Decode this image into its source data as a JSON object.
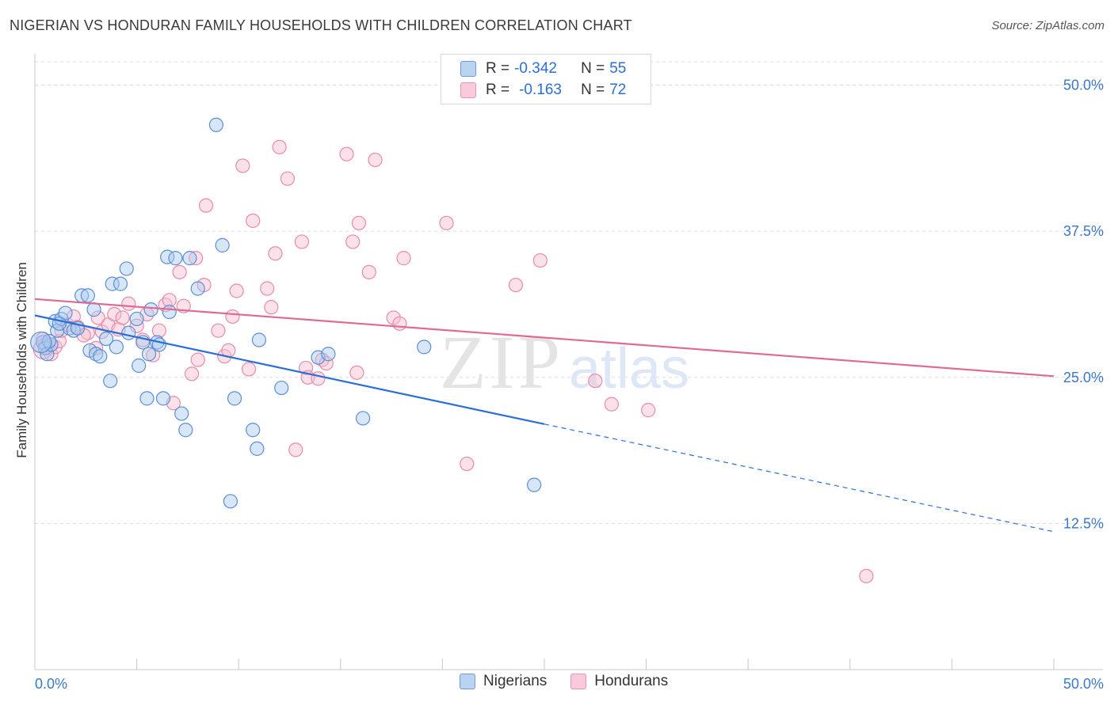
{
  "header": {
    "title": "NIGERIAN VS HONDURAN FAMILY HOUSEHOLDS WITH CHILDREN CORRELATION CHART",
    "source": "Source: ZipAtlas.com"
  },
  "legend": {
    "series": [
      {
        "r_label": "R =",
        "r_value": "-0.342",
        "n_label": "N =",
        "n_value": "55"
      },
      {
        "r_label": "R =",
        "r_value": "-0.163",
        "n_label": "N =",
        "n_value": "72"
      }
    ]
  },
  "bottom_legend": {
    "nigerians": "Nigerians",
    "hondurans": "Hondurans"
  },
  "watermark": {
    "zip": "ZIP",
    "atlas": "atlas"
  },
  "colors": {
    "nigerian_fill": "#a9c9f0",
    "nigerian_stroke": "#5b8fd4",
    "nigerian_line": "#2a6fd6",
    "honduran_fill": "#f6bfd0",
    "honduran_stroke": "#e98aaa",
    "honduran_line": "#e06a93",
    "tick_text": "#3a78c9",
    "grid": "#dcdcdc"
  },
  "chart_data": {
    "type": "scatter",
    "title": "NIGERIAN VS HONDURAN FAMILY HOUSEHOLDS WITH CHILDREN CORRELATION CHART",
    "xlabel": "",
    "ylabel": "Family Households with Children",
    "xlim": [
      0,
      50
    ],
    "ylim": [
      0,
      52
    ],
    "x_tick_labels": [
      "0.0%",
      "50.0%"
    ],
    "y_ticks": [
      12.5,
      25.0,
      37.5,
      50.0
    ],
    "y_tick_labels": [
      "12.5%",
      "25.0%",
      "37.5%",
      "50.0%"
    ],
    "grid": true,
    "series": [
      {
        "name": "Nigerians",
        "r": -0.342,
        "n": 55,
        "trend": {
          "x0": 0,
          "y0": 30.3,
          "x1": 25,
          "y1": 21.0,
          "dash_x1": 50,
          "dash_y1": 11.8
        },
        "points": [
          [
            0.4,
            28.0
          ],
          [
            0.5,
            27.5
          ],
          [
            0.6,
            27.0
          ],
          [
            0.8,
            27.8
          ],
          [
            1.0,
            29.8
          ],
          [
            1.1,
            29.0
          ],
          [
            1.3,
            30.0
          ],
          [
            1.5,
            30.5
          ],
          [
            1.7,
            29.2
          ],
          [
            1.9,
            29.0
          ],
          [
            2.3,
            32.0
          ],
          [
            2.6,
            32.0
          ],
          [
            2.7,
            27.3
          ],
          [
            2.9,
            30.8
          ],
          [
            3.0,
            27.0
          ],
          [
            3.2,
            26.8
          ],
          [
            3.7,
            24.7
          ],
          [
            3.8,
            33.0
          ],
          [
            4.2,
            33.0
          ],
          [
            4.0,
            27.6
          ],
          [
            4.6,
            28.8
          ],
          [
            4.5,
            34.3
          ],
          [
            5.0,
            30.0
          ],
          [
            5.1,
            26.0
          ],
          [
            5.3,
            28.0
          ],
          [
            5.5,
            23.2
          ],
          [
            5.6,
            27.0
          ],
          [
            5.7,
            30.8
          ],
          [
            6.0,
            28.0
          ],
          [
            6.1,
            27.8
          ],
          [
            6.3,
            23.2
          ],
          [
            6.5,
            35.3
          ],
          [
            6.6,
            30.6
          ],
          [
            6.9,
            35.2
          ],
          [
            7.2,
            21.9
          ],
          [
            7.4,
            20.5
          ],
          [
            7.6,
            35.2
          ],
          [
            8.0,
            32.6
          ],
          [
            8.9,
            46.6
          ],
          [
            9.2,
            36.3
          ],
          [
            9.6,
            14.4
          ],
          [
            9.8,
            23.2
          ],
          [
            10.7,
            20.5
          ],
          [
            10.9,
            18.9
          ],
          [
            11.0,
            28.2
          ],
          [
            12.1,
            24.1
          ],
          [
            13.9,
            26.7
          ],
          [
            14.4,
            27.0
          ],
          [
            16.1,
            21.5
          ],
          [
            19.1,
            27.6
          ],
          [
            24.5,
            15.8
          ],
          [
            0.7,
            28.1
          ],
          [
            1.2,
            29.6
          ],
          [
            3.5,
            28.3
          ],
          [
            2.1,
            29.2
          ]
        ]
      },
      {
        "name": "Hondurans",
        "r": -0.163,
        "n": 72,
        "trend": {
          "x0": 0,
          "y0": 31.7,
          "x1": 50,
          "y1": 25.1
        },
        "points": [
          [
            0.4,
            28.3
          ],
          [
            0.5,
            27.8
          ],
          [
            0.6,
            27.5
          ],
          [
            0.8,
            27.0
          ],
          [
            1.0,
            27.6
          ],
          [
            1.2,
            28.1
          ],
          [
            1.3,
            29.0
          ],
          [
            1.6,
            29.5
          ],
          [
            1.9,
            30.2
          ],
          [
            2.1,
            29.3
          ],
          [
            2.6,
            28.8
          ],
          [
            3.0,
            27.5
          ],
          [
            3.1,
            30.1
          ],
          [
            3.3,
            28.9
          ],
          [
            3.6,
            29.5
          ],
          [
            3.9,
            30.4
          ],
          [
            4.1,
            29.1
          ],
          [
            4.3,
            30.1
          ],
          [
            4.6,
            31.3
          ],
          [
            5.0,
            29.4
          ],
          [
            5.3,
            28.2
          ],
          [
            5.5,
            30.4
          ],
          [
            5.8,
            26.9
          ],
          [
            6.1,
            29.0
          ],
          [
            6.4,
            31.2
          ],
          [
            6.6,
            31.6
          ],
          [
            6.8,
            22.8
          ],
          [
            7.1,
            34.0
          ],
          [
            7.3,
            31.1
          ],
          [
            7.7,
            25.3
          ],
          [
            7.9,
            35.2
          ],
          [
            8.0,
            26.5
          ],
          [
            8.3,
            32.9
          ],
          [
            8.4,
            39.7
          ],
          [
            9.0,
            29.0
          ],
          [
            9.3,
            26.8
          ],
          [
            9.5,
            27.3
          ],
          [
            9.7,
            30.2
          ],
          [
            9.9,
            32.4
          ],
          [
            10.2,
            43.1
          ],
          [
            10.5,
            25.7
          ],
          [
            10.7,
            38.4
          ],
          [
            11.4,
            32.6
          ],
          [
            11.6,
            31.0
          ],
          [
            11.8,
            35.6
          ],
          [
            12.0,
            44.7
          ],
          [
            12.4,
            42.0
          ],
          [
            12.8,
            18.8
          ],
          [
            13.1,
            36.6
          ],
          [
            13.3,
            25.8
          ],
          [
            13.4,
            25.0
          ],
          [
            13.9,
            24.9
          ],
          [
            14.1,
            26.5
          ],
          [
            14.3,
            26.2
          ],
          [
            15.3,
            44.1
          ],
          [
            15.6,
            36.6
          ],
          [
            15.8,
            25.4
          ],
          [
            15.9,
            38.2
          ],
          [
            16.4,
            34.0
          ],
          [
            16.7,
            43.6
          ],
          [
            17.6,
            30.1
          ],
          [
            17.9,
            29.6
          ],
          [
            18.1,
            35.2
          ],
          [
            20.2,
            38.2
          ],
          [
            21.2,
            17.6
          ],
          [
            23.6,
            32.9
          ],
          [
            24.8,
            35.0
          ],
          [
            27.5,
            24.7
          ],
          [
            28.3,
            22.7
          ],
          [
            30.1,
            22.2
          ],
          [
            40.8,
            8.0
          ],
          [
            2.4,
            28.6
          ]
        ]
      }
    ]
  }
}
